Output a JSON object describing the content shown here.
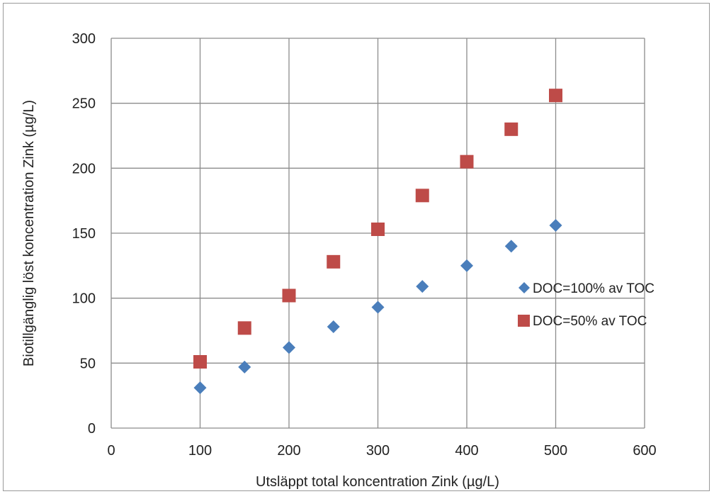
{
  "chart_data": {
    "type": "scatter",
    "title": "",
    "xlabel": "Utsläppt total koncentration Zink (µg/L)",
    "ylabel": "Biotillgänglig löst koncentration Zink (µg/L)",
    "xlim": [
      0,
      600
    ],
    "ylim": [
      0,
      300
    ],
    "x_ticks": [
      0,
      100,
      200,
      300,
      400,
      500,
      600
    ],
    "y_ticks": [
      0,
      50,
      100,
      150,
      200,
      250,
      300
    ],
    "x_tick_labels": [
      "0",
      "100",
      "200",
      "300",
      "400",
      "500",
      "600"
    ],
    "y_tick_labels": [
      "0",
      "50",
      "100",
      "150",
      "200",
      "250",
      "300"
    ],
    "grid": true,
    "legend_position": "right",
    "series": [
      {
        "name": "DOC=100% av TOC",
        "marker": "diamond",
        "color": "#4a7ebb",
        "x": [
          100,
          150,
          200,
          250,
          300,
          350,
          400,
          450,
          500
        ],
        "y": [
          31,
          47,
          62,
          78,
          93,
          109,
          125,
          140,
          156
        ]
      },
      {
        "name": "DOC=50% av TOC",
        "marker": "square",
        "color": "#be4b48",
        "x": [
          100,
          150,
          200,
          250,
          300,
          350,
          400,
          450,
          500
        ],
        "y": [
          51,
          77,
          102,
          128,
          153,
          179,
          205,
          230,
          256
        ]
      }
    ]
  }
}
